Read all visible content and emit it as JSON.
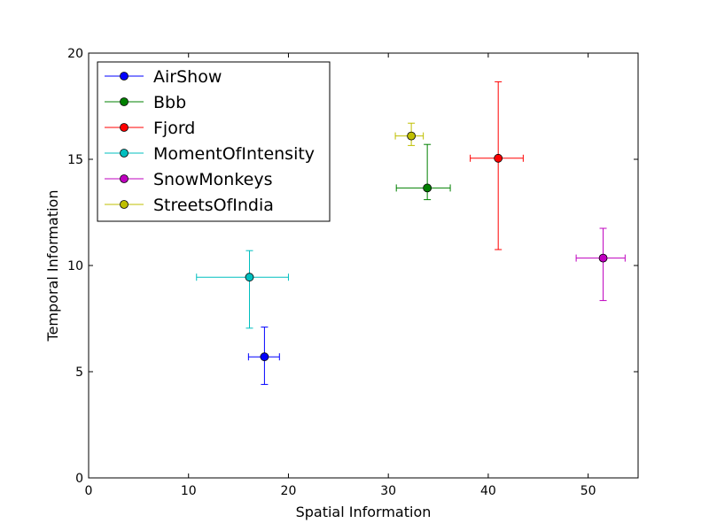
{
  "chart_data": {
    "type": "scatter",
    "title": "",
    "xlabel": "Spatial Information",
    "ylabel": "Temporal Information",
    "xlim": [
      0,
      55
    ],
    "ylim": [
      0,
      20
    ],
    "xticks": [
      0,
      10,
      20,
      30,
      40,
      50
    ],
    "yticks": [
      0,
      5,
      10,
      15,
      20
    ],
    "grid": false,
    "legend_position": "top-left",
    "series": [
      {
        "name": "AirShow",
        "color": "#0000ff",
        "x": 17.6,
        "y": 5.7,
        "x_err": [
          1.6,
          1.5
        ],
        "y_err": [
          1.3,
          1.4
        ]
      },
      {
        "name": "Bbb",
        "color": "#008000",
        "x": 33.9,
        "y": 13.65,
        "x_err": [
          3.1,
          2.3
        ],
        "y_err": [
          0.55,
          2.05
        ]
      },
      {
        "name": "Fjord",
        "color": "#ff0000",
        "x": 41.0,
        "y": 15.05,
        "x_err": [
          2.8,
          2.5
        ],
        "y_err": [
          4.3,
          3.6
        ]
      },
      {
        "name": "MomentOfIntensity",
        "color": "#00bfbf",
        "x": 16.1,
        "y": 9.45,
        "x_err": [
          5.3,
          3.9
        ],
        "y_err": [
          2.4,
          1.25
        ]
      },
      {
        "name": "SnowMonkeys",
        "color": "#bf00bf",
        "x": 51.5,
        "y": 10.35,
        "x_err": [
          2.7,
          2.2
        ],
        "y_err": [
          2.0,
          1.4
        ]
      },
      {
        "name": "StreetsOfIndia",
        "color": "#bfbf00",
        "x": 32.3,
        "y": 16.1,
        "x_err": [
          1.6,
          1.2
        ],
        "y_err": [
          0.45,
          0.6
        ]
      }
    ]
  }
}
